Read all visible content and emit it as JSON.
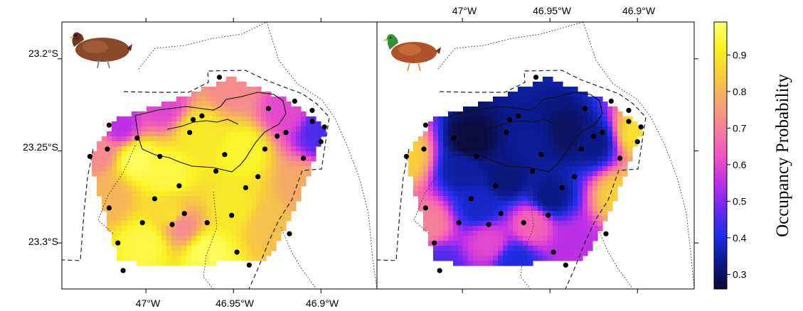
{
  "chart_data": [
    {
      "type": "heatmap",
      "panel": "left",
      "icon": "brown-bird-icon",
      "x_ticks": [
        "47°W",
        "46.95°W",
        "46.9°W"
      ],
      "x_tick_values": [
        -47.0,
        -46.95,
        -46.9
      ],
      "y_ticks": [
        "23.2°S",
        "23.25°S",
        "23.3°S"
      ],
      "y_tick_values": [
        -23.2,
        -23.25,
        -23.3
      ],
      "xlim": [
        -47.048,
        -46.868
      ],
      "ylim": [
        -23.325,
        -23.18
      ],
      "hull": [
        [
          -47.032,
          -23.253
        ],
        [
          -47.017,
          -23.233
        ],
        [
          -46.979,
          -23.221
        ],
        [
          -46.951,
          -23.21
        ],
        [
          -46.921,
          -23.222
        ],
        [
          -46.897,
          -23.237
        ],
        [
          -46.914,
          -23.28
        ],
        [
          -46.93,
          -23.308
        ],
        [
          -46.98,
          -23.313
        ],
        [
          -47.015,
          -23.31
        ],
        [
          -47.025,
          -23.28
        ]
      ],
      "field_points": [
        [
          -47.005,
          -23.255,
          0.97
        ],
        [
          -46.988,
          -23.262,
          0.95
        ],
        [
          -46.97,
          -23.24,
          0.9
        ],
        [
          -46.945,
          -23.25,
          0.93
        ],
        [
          -47.0,
          -23.3,
          0.95
        ],
        [
          -46.965,
          -23.305,
          0.97
        ],
        [
          -46.93,
          -23.29,
          0.82
        ],
        [
          -46.91,
          -23.27,
          0.78
        ],
        [
          -47.02,
          -23.275,
          0.8
        ],
        [
          -47.028,
          -23.25,
          0.72
        ],
        [
          -47.015,
          -23.236,
          0.55
        ],
        [
          -46.99,
          -23.226,
          0.6
        ],
        [
          -46.95,
          -23.215,
          0.72
        ],
        [
          -46.92,
          -23.228,
          0.6
        ],
        [
          -46.9,
          -23.24,
          0.45
        ],
        [
          -46.985,
          -23.285,
          0.88
        ],
        [
          -46.95,
          -23.28,
          0.9
        ],
        [
          -46.98,
          -23.29,
          0.72
        ]
      ],
      "sites": [
        [
          -47.032,
          -23.253
        ],
        [
          -47.022,
          -23.249
        ],
        [
          -47.021,
          -23.236
        ],
        [
          -47.021,
          -23.281
        ],
        [
          -47.016,
          -23.3
        ],
        [
          -47.013,
          -23.315
        ],
        [
          -47.005,
          -23.243
        ],
        [
          -47.002,
          -23.289
        ],
        [
          -46.995,
          -23.276
        ],
        [
          -46.992,
          -23.253
        ],
        [
          -46.985,
          -23.29
        ],
        [
          -46.981,
          -23.269
        ],
        [
          -46.978,
          -23.284
        ],
        [
          -46.975,
          -23.24
        ],
        [
          -46.973,
          -23.233
        ],
        [
          -46.968,
          -23.231
        ],
        [
          -46.965,
          -23.289
        ],
        [
          -46.96,
          -23.261
        ],
        [
          -46.955,
          -23.252
        ],
        [
          -46.951,
          -23.285
        ],
        [
          -46.948,
          -23.305
        ],
        [
          -46.943,
          -23.27
        ],
        [
          -46.941,
          -23.312
        ],
        [
          -46.936,
          -23.264
        ],
        [
          -46.932,
          -23.249
        ],
        [
          -46.93,
          -23.227
        ],
        [
          -46.925,
          -23.242
        ],
        [
          -46.92,
          -23.24
        ],
        [
          -46.918,
          -23.295
        ],
        [
          -46.915,
          -23.223
        ],
        [
          -46.91,
          -23.254
        ],
        [
          -46.905,
          -23.234
        ],
        [
          -46.905,
          -23.228
        ],
        [
          -46.9,
          -23.245
        ],
        [
          -46.898,
          -23.237
        ],
        [
          -46.958,
          -23.21
        ]
      ]
    },
    {
      "type": "heatmap",
      "panel": "right",
      "icon": "green-headed-bird-icon",
      "x_ticks": [
        "47°W",
        "46.95°W",
        "46.9°W"
      ],
      "x_tick_values": [
        -47.0,
        -46.95,
        -46.9
      ],
      "y_ticks": [
        "23.2°S",
        "23.25°S",
        "23.3°S"
      ],
      "y_tick_values": [
        -23.2,
        -23.25,
        -23.3
      ],
      "xlim": [
        -47.048,
        -46.868
      ],
      "ylim": [
        -23.325,
        -23.18
      ],
      "hull": [
        [
          -47.032,
          -23.253
        ],
        [
          -47.017,
          -23.233
        ],
        [
          -46.979,
          -23.221
        ],
        [
          -46.951,
          -23.21
        ],
        [
          -46.921,
          -23.222
        ],
        [
          -46.897,
          -23.237
        ],
        [
          -46.914,
          -23.28
        ],
        [
          -46.93,
          -23.308
        ],
        [
          -46.98,
          -23.313
        ],
        [
          -47.015,
          -23.31
        ],
        [
          -47.025,
          -23.28
        ]
      ],
      "field_points": [
        [
          -46.995,
          -23.245,
          0.27
        ],
        [
          -46.975,
          -23.265,
          0.32
        ],
        [
          -46.96,
          -23.245,
          0.34
        ],
        [
          -46.94,
          -23.24,
          0.3
        ],
        [
          -46.925,
          -23.245,
          0.33
        ],
        [
          -46.99,
          -23.28,
          0.38
        ],
        [
          -46.95,
          -23.275,
          0.33
        ],
        [
          -47.032,
          -23.253,
          0.85
        ],
        [
          -46.9,
          -23.24,
          0.88
        ],
        [
          -46.91,
          -23.275,
          0.85
        ],
        [
          -47.02,
          -23.29,
          0.7
        ],
        [
          -46.985,
          -23.3,
          0.6
        ],
        [
          -46.96,
          -23.29,
          0.65
        ],
        [
          -46.935,
          -23.3,
          0.55
        ],
        [
          -46.97,
          -23.31,
          0.4
        ],
        [
          -47.013,
          -23.312,
          0.45
        ],
        [
          -47.0,
          -23.26,
          0.35
        ]
      ],
      "sites": [
        [
          -47.032,
          -23.253
        ],
        [
          -47.022,
          -23.249
        ],
        [
          -47.021,
          -23.236
        ],
        [
          -47.021,
          -23.281
        ],
        [
          -47.016,
          -23.3
        ],
        [
          -47.013,
          -23.315
        ],
        [
          -47.005,
          -23.243
        ],
        [
          -47.002,
          -23.289
        ],
        [
          -46.995,
          -23.276
        ],
        [
          -46.992,
          -23.253
        ],
        [
          -46.985,
          -23.29
        ],
        [
          -46.981,
          -23.269
        ],
        [
          -46.978,
          -23.284
        ],
        [
          -46.975,
          -23.24
        ],
        [
          -46.973,
          -23.233
        ],
        [
          -46.968,
          -23.231
        ],
        [
          -46.965,
          -23.289
        ],
        [
          -46.96,
          -23.261
        ],
        [
          -46.955,
          -23.252
        ],
        [
          -46.951,
          -23.285
        ],
        [
          -46.948,
          -23.305
        ],
        [
          -46.943,
          -23.27
        ],
        [
          -46.941,
          -23.312
        ],
        [
          -46.936,
          -23.264
        ],
        [
          -46.932,
          -23.249
        ],
        [
          -46.93,
          -23.227
        ],
        [
          -46.925,
          -23.242
        ],
        [
          -46.92,
          -23.24
        ],
        [
          -46.918,
          -23.295
        ],
        [
          -46.915,
          -23.223
        ],
        [
          -46.91,
          -23.254
        ],
        [
          -46.905,
          -23.234
        ],
        [
          -46.905,
          -23.228
        ],
        [
          -46.9,
          -23.245
        ],
        [
          -46.898,
          -23.237
        ],
        [
          -46.958,
          -23.21
        ]
      ]
    }
  ],
  "colorbar": {
    "title": "Occupancy Probability",
    "ticks": [
      "0.3",
      "0.4",
      "0.5",
      "0.6",
      "0.7",
      "0.8",
      "0.9"
    ],
    "tick_values": [
      0.3,
      0.4,
      0.5,
      0.6,
      0.7,
      0.8,
      0.9
    ],
    "range": [
      0.26,
      0.99
    ],
    "colors": [
      "#0a0a30",
      "#0c1a8c",
      "#1e2ee6",
      "#6a2af0",
      "#c030e6",
      "#f056c0",
      "#f5809a",
      "#f5a66e",
      "#f7cc3c",
      "#faf222",
      "#ffff70"
    ]
  }
}
